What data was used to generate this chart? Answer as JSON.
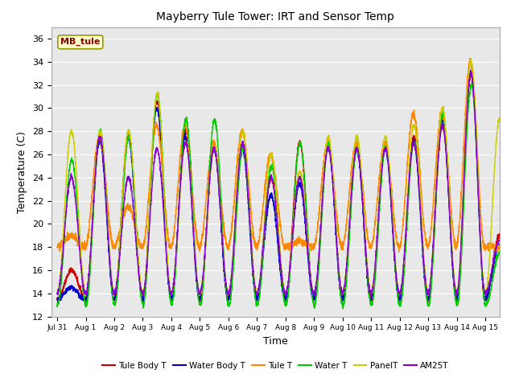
{
  "title": "Mayberry Tule Tower: IRT and Sensor Temp",
  "xlabel": "Time",
  "ylabel": "Temperature (C)",
  "ylim": [
    12,
    37
  ],
  "yticks": [
    12,
    14,
    16,
    18,
    20,
    22,
    24,
    26,
    28,
    30,
    32,
    34,
    36
  ],
  "bg_color": "#e8e8e8",
  "series": {
    "Tule Body T": {
      "color": "#cc0000",
      "lw": 1.0
    },
    "Water Body T": {
      "color": "#0000cc",
      "lw": 1.0
    },
    "Tule T": {
      "color": "#ff8800",
      "lw": 1.0
    },
    "Water T": {
      "color": "#00cc00",
      "lw": 1.0
    },
    "PanelT": {
      "color": "#cccc00",
      "lw": 1.0
    },
    "AM25T": {
      "color": "#8800cc",
      "lw": 1.0
    }
  },
  "xtick_labels": [
    "Jul 31",
    "Aug 1",
    "Aug 2",
    "Aug 3",
    "Aug 4",
    "Aug 5",
    "Aug 6",
    "Aug 7",
    "Aug 8",
    "Aug 9",
    "Aug 10",
    "Aug 11",
    "Aug 12",
    "Aug 13",
    "Aug 14",
    "Aug 15"
  ],
  "annotation_text": "MB_tule"
}
